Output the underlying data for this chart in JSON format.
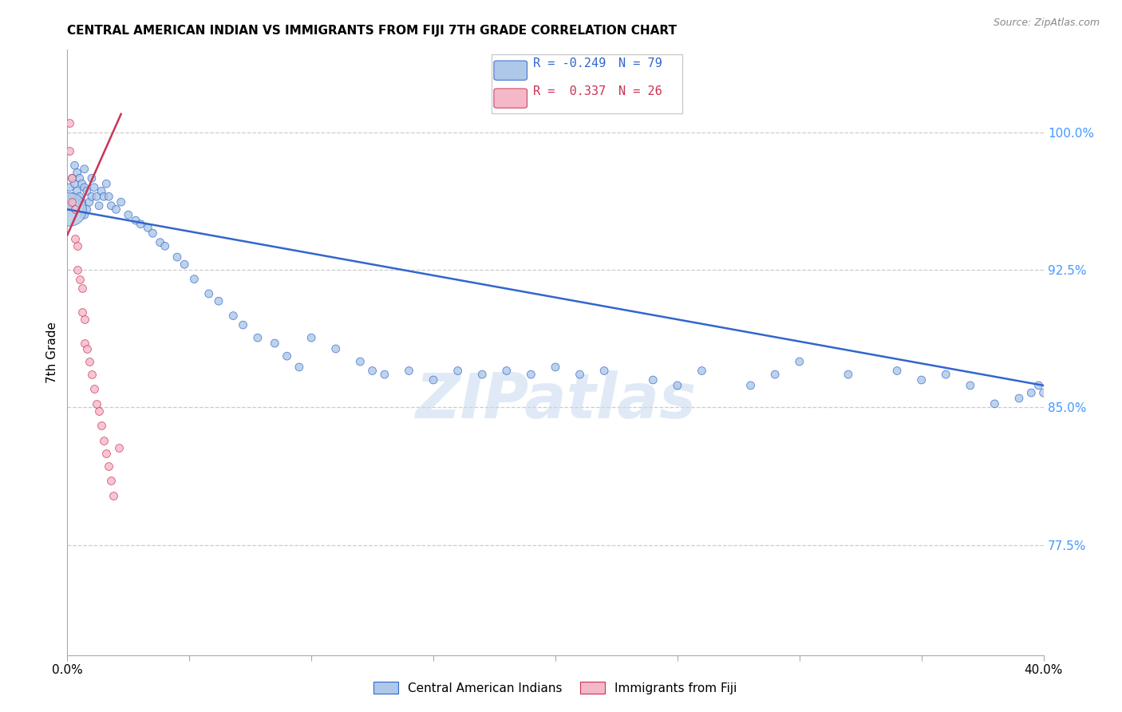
{
  "title": "CENTRAL AMERICAN INDIAN VS IMMIGRANTS FROM FIJI 7TH GRADE CORRELATION CHART",
  "source": "Source: ZipAtlas.com",
  "ylabel": "7th Grade",
  "yticks": [
    "100.0%",
    "92.5%",
    "85.0%",
    "77.5%"
  ],
  "ytick_vals": [
    1.0,
    0.925,
    0.85,
    0.775
  ],
  "xmin": 0.0,
  "xmax": 0.4,
  "ymin": 0.715,
  "ymax": 1.045,
  "r_blue": -0.249,
  "n_blue": 79,
  "r_pink": 0.337,
  "n_pink": 26,
  "blue_color": "#adc8e8",
  "pink_color": "#f4b8c8",
  "line_blue": "#3366cc",
  "line_pink": "#cc3355",
  "legend_label_blue": "Central American Indians",
  "legend_label_pink": "Immigrants from Fiji",
  "watermark": "ZIPatlas",
  "blue_scatter_x": [
    0.001,
    0.001,
    0.002,
    0.002,
    0.003,
    0.003,
    0.004,
    0.004,
    0.005,
    0.005,
    0.006,
    0.006,
    0.007,
    0.007,
    0.007,
    0.008,
    0.008,
    0.009,
    0.01,
    0.01,
    0.011,
    0.012,
    0.013,
    0.014,
    0.015,
    0.016,
    0.017,
    0.018,
    0.02,
    0.022,
    0.025,
    0.028,
    0.03,
    0.033,
    0.035,
    0.038,
    0.04,
    0.045,
    0.048,
    0.052,
    0.058,
    0.062,
    0.068,
    0.072,
    0.078,
    0.085,
    0.09,
    0.095,
    0.1,
    0.11,
    0.12,
    0.125,
    0.13,
    0.14,
    0.15,
    0.16,
    0.17,
    0.18,
    0.19,
    0.2,
    0.21,
    0.22,
    0.24,
    0.25,
    0.26,
    0.28,
    0.29,
    0.3,
    0.32,
    0.34,
    0.35,
    0.36,
    0.37,
    0.38,
    0.39,
    0.395,
    0.398,
    0.4,
    0.001
  ],
  "blue_scatter_y": [
    0.97,
    0.96,
    0.975,
    0.965,
    0.982,
    0.972,
    0.978,
    0.968,
    0.975,
    0.965,
    0.972,
    0.962,
    0.98,
    0.97,
    0.955,
    0.968,
    0.958,
    0.962,
    0.975,
    0.965,
    0.97,
    0.965,
    0.96,
    0.968,
    0.965,
    0.972,
    0.965,
    0.96,
    0.958,
    0.962,
    0.955,
    0.952,
    0.95,
    0.948,
    0.945,
    0.94,
    0.938,
    0.932,
    0.928,
    0.92,
    0.912,
    0.908,
    0.9,
    0.895,
    0.888,
    0.885,
    0.878,
    0.872,
    0.888,
    0.882,
    0.875,
    0.87,
    0.868,
    0.87,
    0.865,
    0.87,
    0.868,
    0.87,
    0.868,
    0.872,
    0.868,
    0.87,
    0.865,
    0.862,
    0.87,
    0.862,
    0.868,
    0.875,
    0.868,
    0.87,
    0.865,
    0.868,
    0.862,
    0.852,
    0.855,
    0.858,
    0.862,
    0.858,
    0.958
  ],
  "blue_scatter_sizes": [
    50,
    50,
    50,
    50,
    50,
    50,
    50,
    50,
    50,
    50,
    50,
    50,
    50,
    50,
    50,
    50,
    50,
    50,
    50,
    50,
    50,
    50,
    50,
    50,
    50,
    50,
    50,
    50,
    50,
    50,
    50,
    50,
    50,
    50,
    50,
    50,
    50,
    50,
    50,
    50,
    50,
    50,
    50,
    50,
    50,
    50,
    50,
    50,
    50,
    50,
    50,
    50,
    50,
    50,
    50,
    50,
    50,
    50,
    50,
    50,
    50,
    50,
    50,
    50,
    50,
    50,
    50,
    50,
    50,
    50,
    50,
    50,
    50,
    50,
    50,
    50,
    50,
    50,
    900
  ],
  "pink_scatter_x": [
    0.001,
    0.001,
    0.002,
    0.002,
    0.003,
    0.003,
    0.004,
    0.004,
    0.005,
    0.006,
    0.006,
    0.007,
    0.007,
    0.008,
    0.009,
    0.01,
    0.011,
    0.012,
    0.013,
    0.014,
    0.015,
    0.016,
    0.017,
    0.018,
    0.019,
    0.021
  ],
  "pink_scatter_y": [
    1.005,
    0.99,
    0.975,
    0.962,
    0.958,
    0.942,
    0.938,
    0.925,
    0.92,
    0.915,
    0.902,
    0.898,
    0.885,
    0.882,
    0.875,
    0.868,
    0.86,
    0.852,
    0.848,
    0.84,
    0.832,
    0.825,
    0.818,
    0.81,
    0.802,
    0.828
  ],
  "grid_color": "#cccccc",
  "background_color": "#ffffff",
  "blue_line_x0": 0.0,
  "blue_line_y0": 0.958,
  "blue_line_x1": 0.4,
  "blue_line_y1": 0.862,
  "pink_line_x0": 0.0,
  "pink_line_y0": 0.944,
  "pink_line_x1": 0.022,
  "pink_line_y1": 1.01
}
